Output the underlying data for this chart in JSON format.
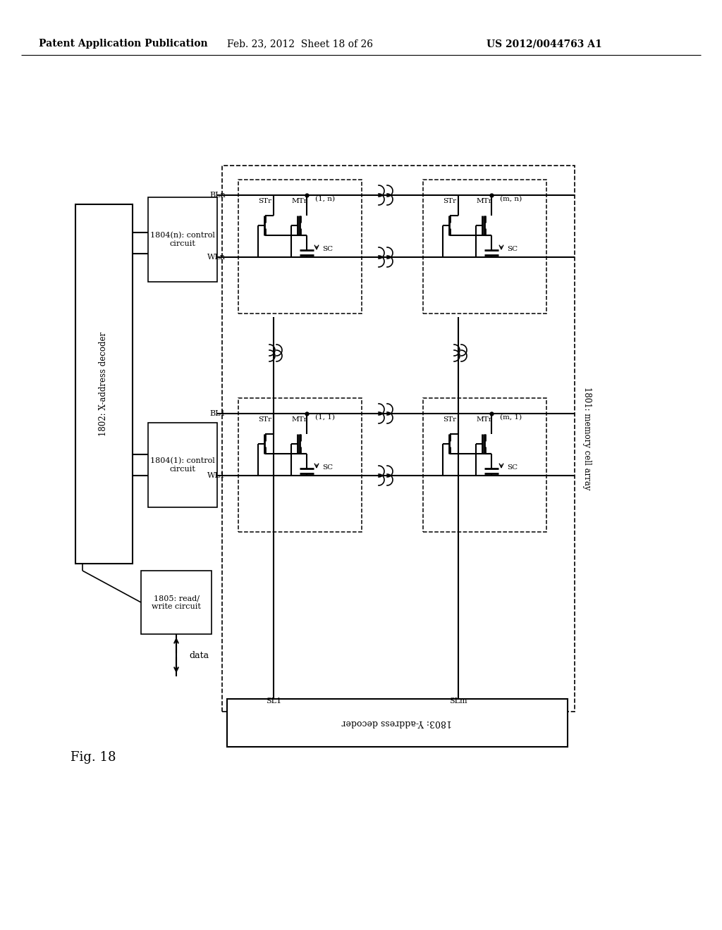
{
  "title_left": "Patent Application Publication",
  "title_mid": "Feb. 23, 2012  Sheet 18 of 26",
  "title_right": "US 2012/0044763 A1",
  "fig_label": "Fig. 18",
  "bg_color": "#ffffff",
  "line_color": "#000000",
  "text_color": "#000000",
  "main_label": "1801: memory cell array",
  "x_decoder_label": "1802: X-address decoder",
  "y_decoder_label": "1803: Y-address decoder",
  "rw_circuit_label": "1805: read/\nwrite circuit",
  "ctrl_n_label": "1804(n): control\ncircuit",
  "ctrl_1_label": "1804(1): control\ncircuit",
  "data_label": "data"
}
